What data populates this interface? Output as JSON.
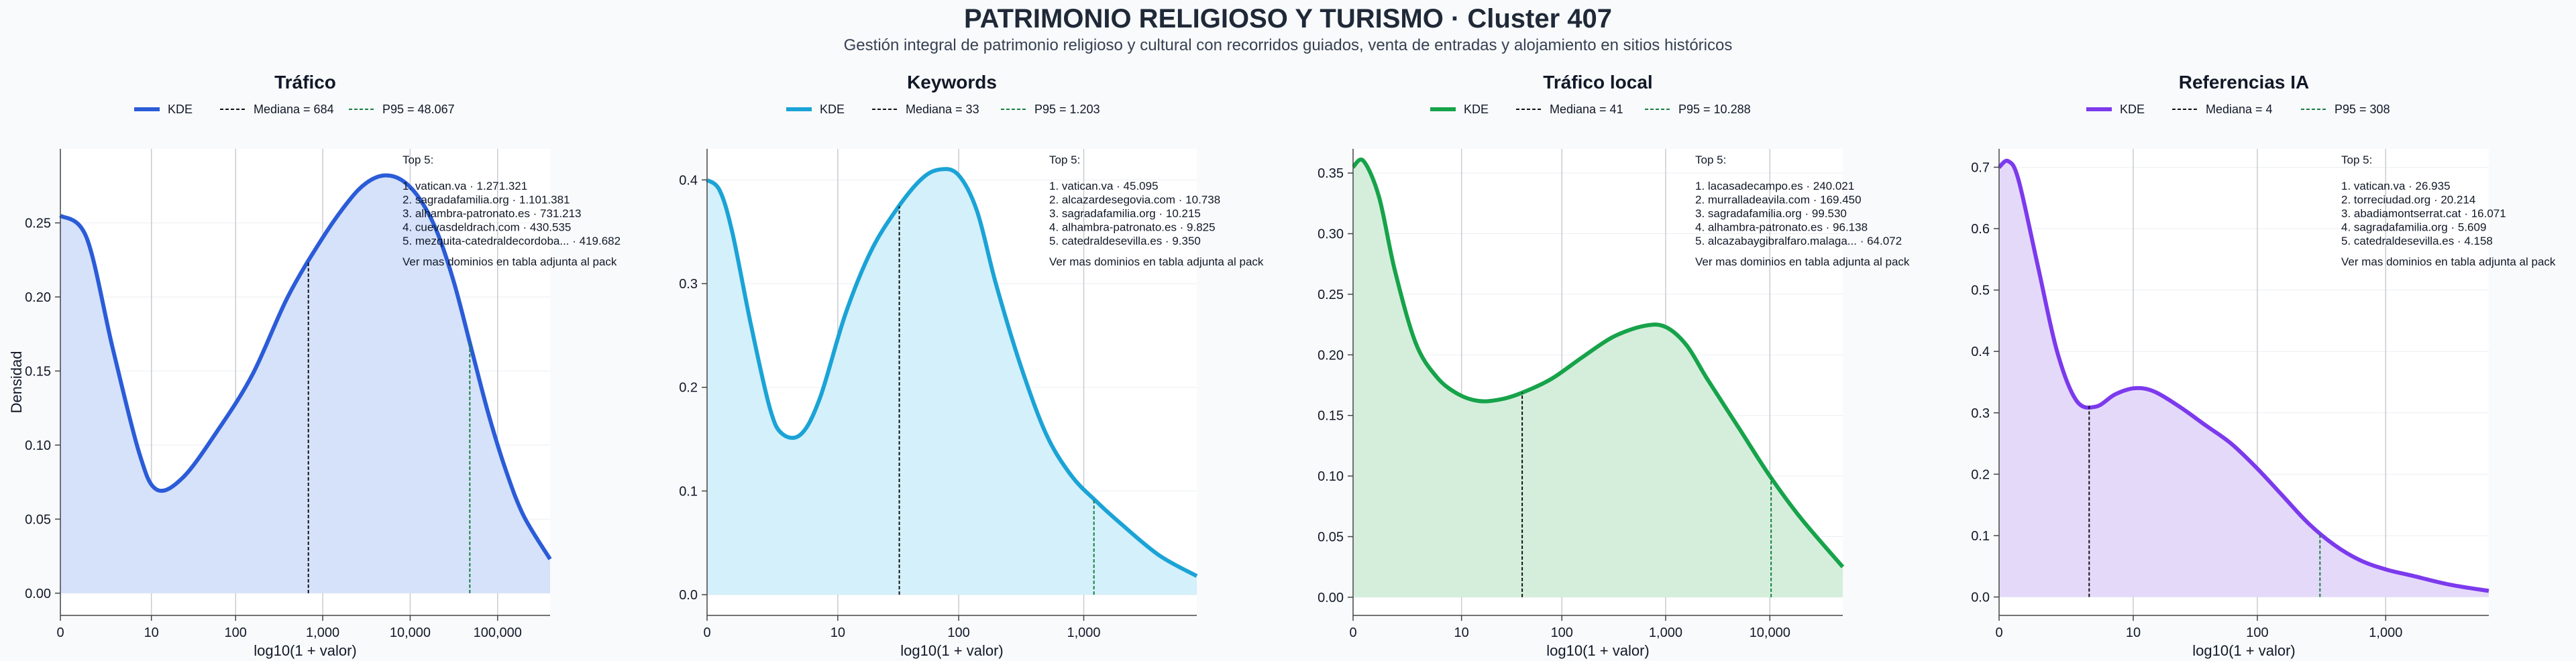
{
  "header": {
    "title": "PATRIMONIO RELIGIOSO Y TURISMO · Cluster 407",
    "subtitle": "Gestión integral de patrimonio religioso y cultural con recorridos guiados, venta de entradas y alojamiento en sitios históricos"
  },
  "colors": {
    "trafico": "#2b5cd8",
    "keywords": "#1ba3d6",
    "trafico_local": "#16a34a",
    "referencias": "#7c3aed"
  },
  "chart_data": [
    {
      "type": "area",
      "title": "Tráfico",
      "xlabel": "log10(1 + valor)",
      "ylabel": "Densidad",
      "color": "#2b5cd8",
      "fill": "#d6e2fa",
      "xlim": [
        0,
        5.6
      ],
      "ylim": [
        -0.015,
        0.3
      ],
      "x_ticks": [
        0,
        1.041,
        2.004,
        3.0,
        4.0,
        5.0
      ],
      "x_tick_labels": [
        "0",
        "10",
        "100",
        "1,000",
        "10,000",
        "100,000"
      ],
      "x_grid": [
        1.041,
        2.004,
        3.0,
        4.0,
        5.0
      ],
      "y_ticks": [
        0,
        0.05,
        0.1,
        0.15,
        0.2,
        0.25
      ],
      "y_tick_labels": [
        "0.00",
        "0.05",
        "0.10",
        "0.15",
        "0.20",
        "0.25"
      ],
      "legend": {
        "kde": "KDE",
        "median": "Mediana = 684",
        "p95": "P95 = 48.067"
      },
      "median": 2.836,
      "p95": 4.682,
      "series": [
        {
          "name": "KDE",
          "x": [
            0,
            0.3,
            0.6,
            0.9,
            1.1,
            1.4,
            1.8,
            2.2,
            2.6,
            3.0,
            3.3,
            3.5,
            3.7,
            3.9,
            4.1,
            4.3,
            4.5,
            4.7,
            4.9,
            5.1,
            5.3,
            5.6
          ],
          "y": [
            0.255,
            0.24,
            0.165,
            0.095,
            0.07,
            0.078,
            0.11,
            0.148,
            0.2,
            0.24,
            0.265,
            0.277,
            0.282,
            0.279,
            0.267,
            0.245,
            0.21,
            0.165,
            0.12,
            0.082,
            0.052,
            0.023
          ]
        }
      ],
      "annotation": {
        "heading": "Top 5:",
        "items": [
          "1. vatican.va · 1.271.321",
          "2. sagradafamilia.org · 1.101.381",
          "3. alhambra-patronato.es · 731.213",
          "4. cuevasdeldrach.com · 430.535",
          "5. mezquita-catedraldecordoba... · 419.682"
        ],
        "footer": "Ver mas dominios en tabla adjunta al pack"
      }
    },
    {
      "type": "area",
      "title": "Keywords",
      "xlabel": "log10(1 + valor)",
      "ylabel": "",
      "color": "#1ba3d6",
      "fill": "#d4f0fb",
      "xlim": [
        0,
        3.9
      ],
      "ylim": [
        -0.02,
        0.43
      ],
      "x_ticks": [
        0,
        1.041,
        2.004,
        3.0
      ],
      "x_tick_labels": [
        "0",
        "10",
        "100",
        "1,000"
      ],
      "x_grid": [
        1.041,
        2.004,
        3.0
      ],
      "y_ticks": [
        0,
        0.1,
        0.2,
        0.3,
        0.4
      ],
      "y_tick_labels": [
        "0.0",
        "0.1",
        "0.2",
        "0.3",
        "0.4"
      ],
      "legend": {
        "kde": "KDE",
        "median": "Mediana = 33",
        "p95": "P95 = 1.203"
      },
      "median": 1.531,
      "p95": 3.081,
      "series": [
        {
          "name": "KDE",
          "x": [
            0,
            0.1,
            0.2,
            0.35,
            0.5,
            0.6,
            0.75,
            0.9,
            1.1,
            1.3,
            1.5,
            1.7,
            1.85,
            2.0,
            2.15,
            2.3,
            2.5,
            2.7,
            2.9,
            3.1,
            3.3,
            3.6,
            3.9
          ],
          "y": [
            0.4,
            0.39,
            0.35,
            0.26,
            0.18,
            0.155,
            0.155,
            0.19,
            0.27,
            0.33,
            0.37,
            0.4,
            0.41,
            0.405,
            0.37,
            0.3,
            0.22,
            0.155,
            0.115,
            0.09,
            0.068,
            0.038,
            0.018
          ]
        }
      ],
      "annotation": {
        "heading": "Top 5:",
        "items": [
          "1. vatican.va · 45.095",
          "2. alcazardesegovia.com · 10.738",
          "3. sagradafamilia.org · 10.215",
          "4. alhambra-patronato.es · 9.825",
          "5. catedraldesevilla.es · 9.350"
        ],
        "footer": "Ver mas dominios en tabla adjunta al pack"
      }
    },
    {
      "type": "area",
      "title": "Tráfico local",
      "xlabel": "log10(1 + valor)",
      "ylabel": "",
      "color": "#16a34a",
      "fill": "#d5eedc",
      "xlim": [
        0,
        4.7
      ],
      "ylim": [
        -0.015,
        0.37
      ],
      "x_ticks": [
        0,
        1.041,
        2.004,
        3.0,
        4.0
      ],
      "x_tick_labels": [
        "0",
        "10",
        "100",
        "1,000",
        "10,000"
      ],
      "x_grid": [
        1.041,
        2.004,
        3.0,
        4.0
      ],
      "y_ticks": [
        0,
        0.05,
        0.1,
        0.15,
        0.2,
        0.25,
        0.3,
        0.35
      ],
      "y_tick_labels": [
        "0.00",
        "0.05",
        "0.10",
        "0.15",
        "0.20",
        "0.25",
        "0.30",
        "0.35"
      ],
      "legend": {
        "kde": "KDE",
        "median": "Mediana = 41",
        "p95": "P95 = 10.288"
      },
      "median": 1.623,
      "p95": 4.012,
      "series": [
        {
          "name": "KDE",
          "x": [
            0,
            0.1,
            0.25,
            0.4,
            0.6,
            0.8,
            1.0,
            1.2,
            1.4,
            1.6,
            1.9,
            2.2,
            2.5,
            2.8,
            3.0,
            3.2,
            3.4,
            3.7,
            4.0,
            4.3,
            4.7
          ],
          "y": [
            0.355,
            0.36,
            0.33,
            0.27,
            0.21,
            0.182,
            0.168,
            0.162,
            0.163,
            0.168,
            0.18,
            0.198,
            0.215,
            0.224,
            0.223,
            0.208,
            0.18,
            0.14,
            0.1,
            0.065,
            0.025
          ]
        }
      ],
      "annotation": {
        "heading": "Top 5:",
        "items": [
          "1. lacasadecampo.es · 240.021",
          "2. murralladeavila.com · 169.450",
          "3. sagradafamilia.org · 99.530",
          "4. alhambra-patronato.es · 96.138",
          "5. alcazabaygibralfaro.malaga... · 64.072"
        ],
        "footer": "Ver mas dominios en tabla adjunta al pack"
      }
    },
    {
      "type": "area",
      "title": "Referencias IA",
      "xlabel": "log10(1 + valor)",
      "ylabel": "",
      "color": "#7c3aed",
      "fill": "#e5d9fa",
      "xlim": [
        0,
        3.8
      ],
      "ylim": [
        -0.03,
        0.73
      ],
      "x_ticks": [
        0,
        1.041,
        2.004,
        3.0
      ],
      "x_tick_labels": [
        "0",
        "10",
        "100",
        "1,000"
      ],
      "x_grid": [
        1.041,
        2.004,
        3.0
      ],
      "y_ticks": [
        0,
        0.1,
        0.2,
        0.3,
        0.4,
        0.5,
        0.6,
        0.7
      ],
      "y_tick_labels": [
        "0.0",
        "0.1",
        "0.2",
        "0.3",
        "0.4",
        "0.5",
        "0.6",
        "0.7"
      ],
      "legend": {
        "kde": "KDE",
        "median": "Mediana = 4",
        "p95": "P95 = 308"
      },
      "median": 0.699,
      "p95": 2.49,
      "series": [
        {
          "name": "KDE",
          "x": [
            0,
            0.07,
            0.15,
            0.3,
            0.45,
            0.6,
            0.75,
            0.9,
            1.05,
            1.2,
            1.4,
            1.6,
            1.8,
            2.0,
            2.2,
            2.4,
            2.6,
            2.8,
            3.0,
            3.2,
            3.5,
            3.8
          ],
          "y": [
            0.7,
            0.71,
            0.68,
            0.54,
            0.4,
            0.32,
            0.31,
            0.33,
            0.34,
            0.335,
            0.31,
            0.28,
            0.25,
            0.21,
            0.165,
            0.12,
            0.085,
            0.06,
            0.045,
            0.035,
            0.02,
            0.01
          ]
        }
      ],
      "annotation": {
        "heading": "Top 5:",
        "items": [
          "1. vatican.va · 26.935",
          "2. torreciudad.org · 20.214",
          "3. abadiamontserrat.cat · 16.071",
          "4. sagradafamilia.org · 5.609",
          "5. catedraldesevilla.es · 4.158"
        ],
        "footer": "Ver mas dominios en tabla adjunta al pack"
      }
    }
  ]
}
